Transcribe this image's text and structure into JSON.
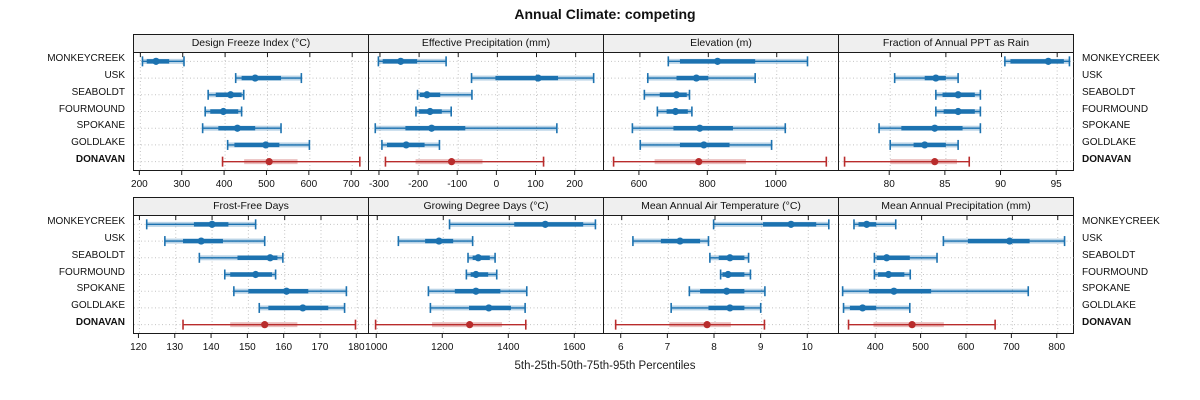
{
  "title": "Annual Climate: competing",
  "caption": "5th-25th-50th-75th-95th Percentiles",
  "percentile_labels": [
    "5th",
    "25th",
    "50th",
    "75th",
    "95th"
  ],
  "colors": {
    "primary": "#1C72B0",
    "primary_band": "rgba(28,114,176,0.30)",
    "competing": "#B92C2C",
    "competing_band": "rgba(185,44,44,0.30)",
    "strip_bg": "#EFEFEF",
    "grid": "#C4C4C4",
    "border": "#1A1A1A"
  },
  "stations": [
    {
      "name": "MONKEYCREEK",
      "role": "primary"
    },
    {
      "name": "USK",
      "role": "primary"
    },
    {
      "name": "SEABOLDT",
      "role": "primary"
    },
    {
      "name": "FOURMOUND",
      "role": "primary"
    },
    {
      "name": "SPOKANE",
      "role": "primary"
    },
    {
      "name": "GOLDLAKE",
      "role": "primary"
    },
    {
      "name": "DONAVAN",
      "role": "competing"
    }
  ],
  "chart_data": [
    {
      "type": "dotplot",
      "title": "Design Freeze Index (°C)",
      "xlim": [
        185,
        742
      ],
      "ticks": [
        200,
        300,
        400,
        500,
        600,
        700
      ],
      "series": [
        {
          "station": "MONKEYCREEK",
          "percentiles": [
            205,
            215,
            237,
            268,
            303
          ]
        },
        {
          "station": "USK",
          "percentiles": [
            425,
            439,
            471,
            532,
            580
          ]
        },
        {
          "station": "SEABOLDT",
          "percentiles": [
            360,
            378,
            413,
            439,
            444
          ]
        },
        {
          "station": "FOURMOUND",
          "percentiles": [
            353,
            365,
            396,
            431,
            439
          ]
        },
        {
          "station": "SPOKANE",
          "percentiles": [
            347,
            384,
            429,
            471,
            532
          ]
        },
        {
          "station": "GOLDLAKE",
          "percentiles": [
            406,
            422,
            496,
            528,
            599
          ]
        },
        {
          "station": "DONAVAN",
          "percentiles": [
            394,
            445,
            504,
            571,
            718
          ]
        }
      ]
    },
    {
      "type": "dotplot",
      "title": "Effective Precipitation (mm)",
      "xlim": [
        -328,
        275
      ],
      "ticks": [
        -300,
        -200,
        -100,
        0,
        100,
        200
      ],
      "series": [
        {
          "station": "MONKEYCREEK",
          "percentiles": [
            -304,
            -293,
            -247,
            -205,
            -131
          ]
        },
        {
          "station": "USK",
          "percentiles": [
            -66,
            -5,
            104,
            155,
            246
          ]
        },
        {
          "station": "SEABOLDT",
          "percentiles": [
            -204,
            -198,
            -180,
            -146,
            -65
          ]
        },
        {
          "station": "FOURMOUND",
          "percentiles": [
            -208,
            -200,
            -172,
            -142,
            -118
          ]
        },
        {
          "station": "SPOKANE",
          "percentiles": [
            -312,
            -235,
            -168,
            -82,
            152
          ]
        },
        {
          "station": "GOLDLAKE",
          "percentiles": [
            -295,
            -282,
            -233,
            -186,
            -148
          ]
        },
        {
          "station": "DONAVAN",
          "percentiles": [
            -286,
            -209,
            -117,
            -38,
            118
          ]
        }
      ]
    },
    {
      "type": "dotplot",
      "title": "Elevation (m)",
      "xlim": [
        495,
        1185
      ],
      "ticks": [
        600,
        800,
        1000
      ],
      "series": [
        {
          "station": "MONKEYCREEK",
          "percentiles": [
            683,
            717,
            827,
            937,
            1090
          ]
        },
        {
          "station": "USK",
          "percentiles": [
            623,
            707,
            765,
            800,
            937
          ]
        },
        {
          "station": "SEABOLDT",
          "percentiles": [
            613,
            658,
            707,
            737,
            745
          ]
        },
        {
          "station": "FOURMOUND",
          "percentiles": [
            651,
            678,
            704,
            740,
            752
          ]
        },
        {
          "station": "SPOKANE",
          "percentiles": [
            578,
            698,
            775,
            872,
            1025
          ]
        },
        {
          "station": "GOLDLAKE",
          "percentiles": [
            601,
            717,
            787,
            862,
            985
          ]
        },
        {
          "station": "DONAVAN",
          "percentiles": [
            523,
            643,
            772,
            910,
            1145
          ]
        }
      ]
    },
    {
      "type": "dotplot",
      "title": "Fraction of Annual PPT as Rain",
      "xlim": [
        75.4,
        96.6
      ],
      "ticks": [
        80,
        85,
        90,
        95
      ],
      "series": [
        {
          "station": "MONKEYCREEK",
          "percentiles": [
            90.3,
            90.8,
            94.2,
            95.6,
            96.1
          ]
        },
        {
          "station": "USK",
          "percentiles": [
            80.4,
            83.1,
            84.1,
            85.0,
            86.1
          ]
        },
        {
          "station": "SEABOLDT",
          "percentiles": [
            84.1,
            84.7,
            86.1,
            87.6,
            88.1
          ]
        },
        {
          "station": "FOURMOUND",
          "percentiles": [
            84.1,
            84.8,
            86.1,
            87.6,
            88.1
          ]
        },
        {
          "station": "SPOKANE",
          "percentiles": [
            79.0,
            81.0,
            84.0,
            86.5,
            88.1
          ]
        },
        {
          "station": "GOLDLAKE",
          "percentiles": [
            80.0,
            82.1,
            83.1,
            85.0,
            86.1
          ]
        },
        {
          "station": "DONAVAN",
          "percentiles": [
            75.9,
            80.0,
            84.0,
            86.0,
            87.1
          ]
        }
      ]
    },
    {
      "type": "dotplot",
      "title": "Frost-Free Days",
      "xlim": [
        118.5,
        183.5
      ],
      "ticks": [
        120,
        130,
        140,
        150,
        160,
        170,
        180
      ],
      "series": [
        {
          "station": "MONKEYCREEK",
          "percentiles": [
            122,
            135,
            140,
            144.5,
            152
          ]
        },
        {
          "station": "USK",
          "percentiles": [
            127,
            132,
            137,
            143,
            154.5
          ]
        },
        {
          "station": "SEABOLDT",
          "percentiles": [
            136.5,
            147,
            156,
            158,
            159.5
          ]
        },
        {
          "station": "FOURMOUND",
          "percentiles": [
            143.5,
            145,
            152,
            156.5,
            157.5
          ]
        },
        {
          "station": "SPOKANE",
          "percentiles": [
            146,
            150,
            160.5,
            166.5,
            177
          ]
        },
        {
          "station": "GOLDLAKE",
          "percentiles": [
            153,
            155.5,
            165,
            172,
            176.5
          ]
        },
        {
          "station": "DONAVAN",
          "percentiles": [
            132,
            145,
            154.5,
            163.5,
            179.5
          ]
        }
      ]
    },
    {
      "type": "dotplot",
      "title": "Growing Degree Days (°C)",
      "xlim": [
        975,
        1690
      ],
      "ticks": [
        1000,
        1200,
        1400,
        1600
      ],
      "series": [
        {
          "station": "MONKEYCREEK",
          "percentiles": [
            1219,
            1415,
            1509,
            1624,
            1661
          ]
        },
        {
          "station": "USK",
          "percentiles": [
            1064,
            1145,
            1187,
            1230,
            1289
          ]
        },
        {
          "station": "SEABOLDT",
          "percentiles": [
            1275,
            1289,
            1306,
            1341,
            1357
          ]
        },
        {
          "station": "FOURMOUND",
          "percentiles": [
            1270,
            1283,
            1299,
            1336,
            1362
          ]
        },
        {
          "station": "SPOKANE",
          "percentiles": [
            1155,
            1235,
            1299,
            1373,
            1453
          ]
        },
        {
          "station": "GOLDLAKE",
          "percentiles": [
            1161,
            1278,
            1338,
            1405,
            1448
          ]
        },
        {
          "station": "DONAVAN",
          "percentiles": [
            995,
            1166,
            1280,
            1378,
            1450
          ]
        }
      ]
    },
    {
      "type": "dotplot",
      "title": "Mean Annual Air Temperature (°C)",
      "xlim": [
        5.62,
        10.68
      ],
      "ticks": [
        6,
        7,
        8,
        9,
        10
      ],
      "series": [
        {
          "station": "MONKEYCREEK",
          "percentiles": [
            7.97,
            9.03,
            9.63,
            10.17,
            10.44
          ]
        },
        {
          "station": "USK",
          "percentiles": [
            6.24,
            6.84,
            7.25,
            7.68,
            7.86
          ]
        },
        {
          "station": "SEABOLDT",
          "percentiles": [
            7.89,
            8.08,
            8.32,
            8.63,
            8.72
          ]
        },
        {
          "station": "FOURMOUND",
          "percentiles": [
            8.12,
            8.16,
            8.28,
            8.63,
            8.76
          ]
        },
        {
          "station": "SPOKANE",
          "percentiles": [
            7.45,
            7.68,
            8.25,
            8.63,
            9.07
          ]
        },
        {
          "station": "GOLDLAKE",
          "percentiles": [
            7.06,
            7.86,
            8.32,
            8.63,
            8.98
          ]
        },
        {
          "station": "DONAVAN",
          "percentiles": [
            5.87,
            7.02,
            7.83,
            8.34,
            9.06
          ]
        }
      ]
    },
    {
      "type": "dotplot",
      "title": "Mean Annual Precipitation (mm)",
      "xlim": [
        318,
        838
      ],
      "ticks": [
        400,
        500,
        600,
        700,
        800
      ],
      "series": [
        {
          "station": "MONKEYCREEK",
          "percentiles": [
            351,
            361,
            379,
            400,
            443
          ]
        },
        {
          "station": "USK",
          "percentiles": [
            548,
            602,
            694,
            738,
            815
          ]
        },
        {
          "station": "SEABOLDT",
          "percentiles": [
            396,
            401,
            423,
            474,
            534
          ]
        },
        {
          "station": "FOURMOUND",
          "percentiles": [
            396,
            404,
            427,
            462,
            475
          ]
        },
        {
          "station": "SPOKANE",
          "percentiles": [
            326,
            384,
            439,
            521,
            735
          ]
        },
        {
          "station": "GOLDLAKE",
          "percentiles": [
            328,
            342,
            370,
            400,
            474
          ]
        },
        {
          "station": "DONAVAN",
          "percentiles": [
            339,
            394,
            479,
            549,
            662
          ]
        }
      ]
    }
  ]
}
